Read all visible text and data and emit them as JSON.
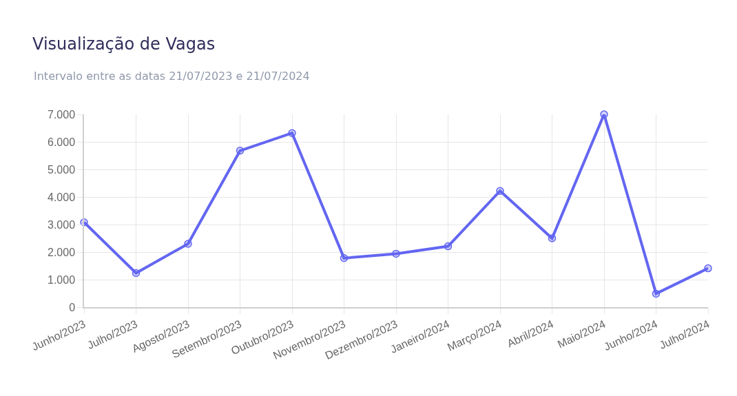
{
  "chart_data": {
    "type": "line",
    "title": "Visualização de Vagas",
    "subtitle": "Intervalo entre as datas 21/07/2023 e 21/07/2024",
    "categories": [
      "Junho/2023",
      "Julho/2023",
      "Agosto/2023",
      "Setembro/2023",
      "Outubro/2023",
      "Novembro/2023",
      "Dezembro/2023",
      "Janeiro/2024",
      "Março/2024",
      "Abril/2024",
      "Maio/2024",
      "Junho/2024",
      "Julho/2024"
    ],
    "series": [
      {
        "color": "#6366f1",
        "values": [
          3080,
          1240,
          2300,
          5680,
          6320,
          1780,
          1940,
          2210,
          4220,
          2500,
          7000,
          490,
          1410
        ]
      }
    ],
    "ylim": [
      0,
      7000
    ],
    "yticks": [
      0,
      {
        "value": 1000,
        "label": "1.000"
      },
      {
        "value": 2000,
        "label": "2.000"
      },
      {
        "value": 3000,
        "label": "3.000"
      },
      {
        "value": 4000,
        "label": "4.000"
      },
      {
        "value": 5000,
        "label": "5.000"
      },
      {
        "value": 6000,
        "label": "6.000"
      },
      {
        "value": 7000,
        "label": "7.000"
      }
    ],
    "grid": true,
    "marker": "circle",
    "line_style": "solid"
  }
}
